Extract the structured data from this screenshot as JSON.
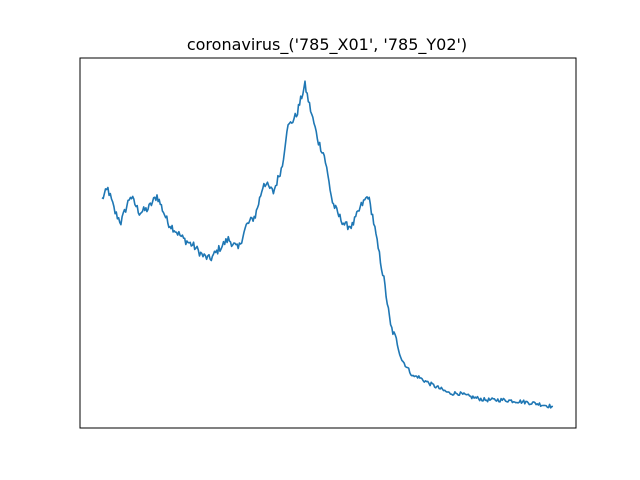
{
  "chart_data": {
    "type": "line",
    "title": "coronavirus_('785_X01', '785_Y02')",
    "xlabel": "",
    "ylabel": "",
    "grid": false,
    "xticks": [],
    "yticks": [],
    "xlim": [
      0,
      1
    ],
    "ylim": [
      0,
      1
    ],
    "series": [
      {
        "color": "#1f77b4",
        "x": [
          0.0,
          0.013,
          0.029,
          0.042,
          0.063,
          0.083,
          0.102,
          0.122,
          0.146,
          0.16,
          0.181,
          0.203,
          0.224,
          0.24,
          0.259,
          0.28,
          0.302,
          0.32,
          0.34,
          0.359,
          0.38,
          0.4,
          0.41,
          0.431,
          0.45,
          0.46,
          0.48,
          0.493,
          0.511,
          0.525,
          0.54,
          0.555,
          0.575,
          0.59,
          0.6,
          0.61,
          0.625,
          0.64,
          0.655,
          0.665,
          0.68,
          0.69,
          0.7,
          0.712,
          0.725,
          0.74,
          0.755,
          0.77,
          0.79,
          0.815,
          0.85,
          0.89,
          0.93,
          0.96,
          0.98,
          1.0
        ],
        "y": [
          0.63,
          0.66,
          0.59,
          0.56,
          0.64,
          0.59,
          0.6,
          0.64,
          0.56,
          0.54,
          0.51,
          0.49,
          0.46,
          0.45,
          0.48,
          0.51,
          0.48,
          0.55,
          0.58,
          0.68,
          0.65,
          0.73,
          0.84,
          0.88,
          0.97,
          0.91,
          0.8,
          0.76,
          0.62,
          0.58,
          0.55,
          0.55,
          0.61,
          0.64,
          0.58,
          0.5,
          0.39,
          0.25,
          0.2,
          0.15,
          0.12,
          0.1,
          0.1,
          0.09,
          0.08,
          0.07,
          0.06,
          0.05,
          0.05,
          0.04,
          0.03,
          0.03,
          0.025,
          0.02,
          0.015,
          0.01
        ]
      }
    ]
  }
}
